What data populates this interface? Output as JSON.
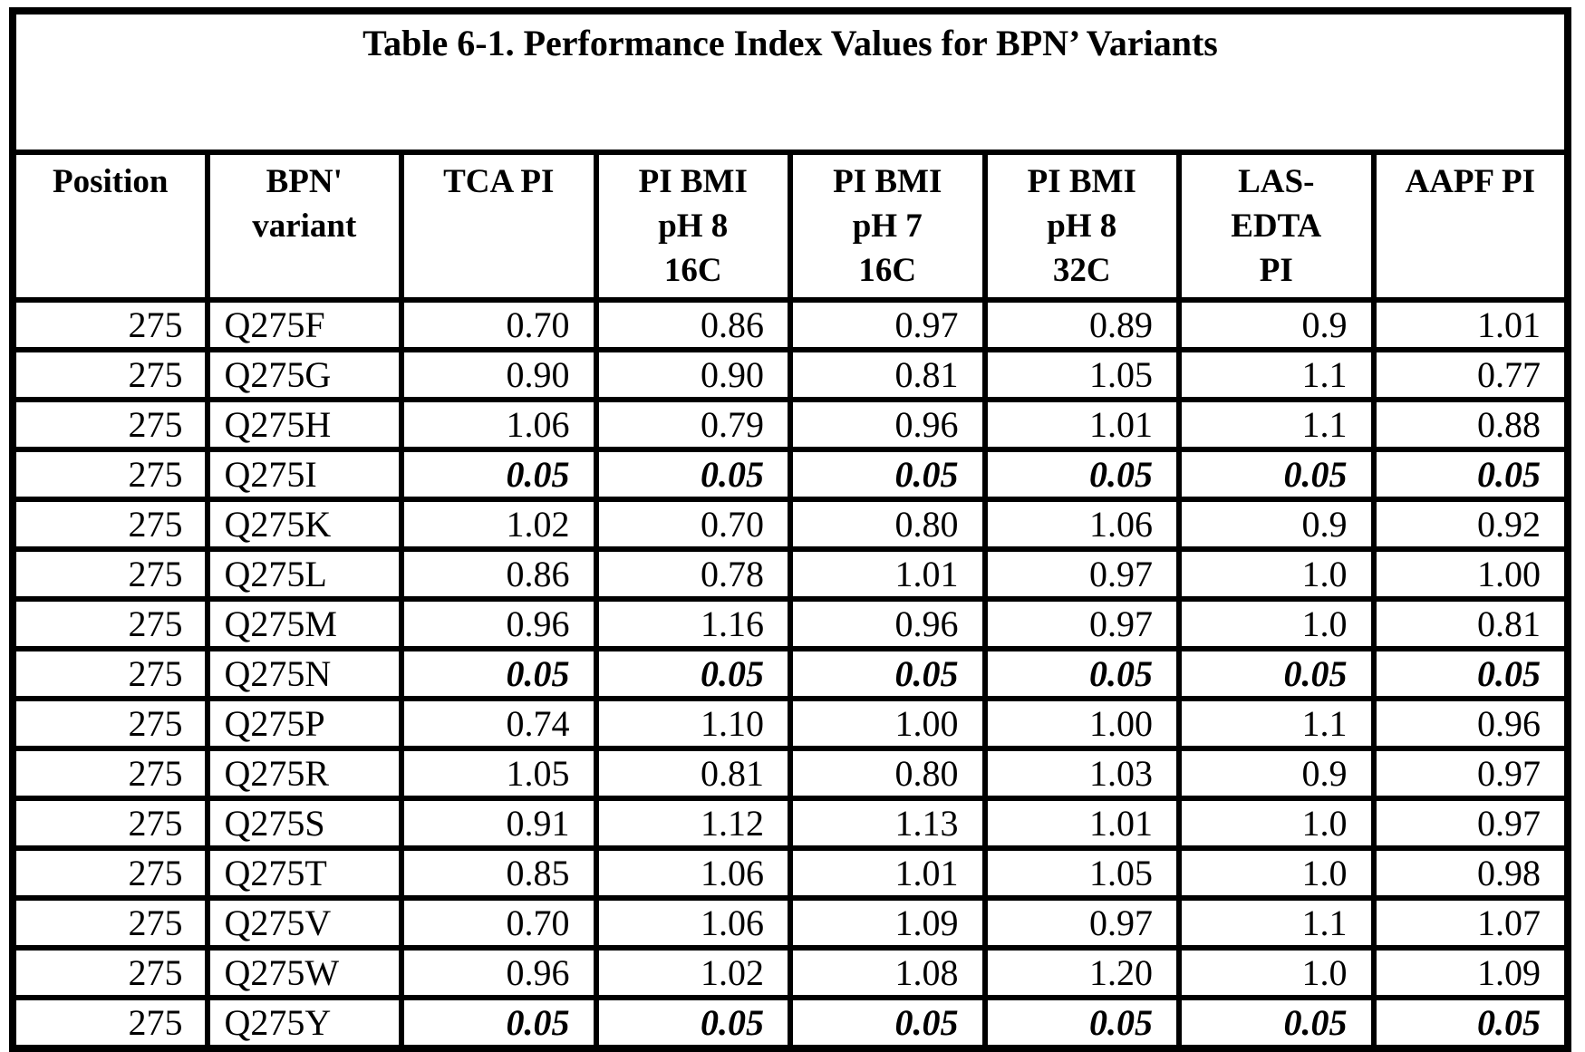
{
  "document": {
    "title": "Table 6-1. Performance Index Values for BPN’ Variants"
  },
  "style": {
    "border_color": "#000000",
    "background_color": "#ffffff",
    "text_color": "#000000"
  },
  "table": {
    "columns": [
      {
        "id": "position",
        "label": "Position",
        "lines": [
          "Position"
        ]
      },
      {
        "id": "bpn-variant",
        "label": "BPN' variant",
        "lines": [
          "BPN'",
          "variant"
        ]
      },
      {
        "id": "tca-pi",
        "label": "TCA PI",
        "lines": [
          "TCA PI"
        ]
      },
      {
        "id": "pi-bmi-ph8-16c",
        "label": "PI BMI pH 8 16C",
        "lines": [
          "PI BMI",
          "pH 8",
          "16C"
        ]
      },
      {
        "id": "pi-bmi-ph7-16c",
        "label": "PI BMI pH 7 16C",
        "lines": [
          "PI BMI",
          "pH 7",
          "16C"
        ]
      },
      {
        "id": "pi-bmi-ph8-32c",
        "label": "PI BMI pH 8 32C",
        "lines": [
          "PI BMI",
          "pH 8",
          "32C"
        ]
      },
      {
        "id": "las-edta-pi",
        "label": "LAS-EDTA PI",
        "lines": [
          "LAS-",
          "EDTA",
          "PI"
        ]
      },
      {
        "id": "aapf-pi",
        "label": "AAPF PI",
        "lines": [
          "AAPF PI"
        ]
      }
    ],
    "rows": [
      {
        "position": "275",
        "variant": "Q275F",
        "values": [
          "0.70",
          "0.86",
          "0.97",
          "0.89",
          "0.9",
          "1.01"
        ],
        "emphasized": false
      },
      {
        "position": "275",
        "variant": "Q275G",
        "values": [
          "0.90",
          "0.90",
          "0.81",
          "1.05",
          "1.1",
          "0.77"
        ],
        "emphasized": false
      },
      {
        "position": "275",
        "variant": "Q275H",
        "values": [
          "1.06",
          "0.79",
          "0.96",
          "1.01",
          "1.1",
          "0.88"
        ],
        "emphasized": false
      },
      {
        "position": "275",
        "variant": "Q275I",
        "values": [
          "0.05",
          "0.05",
          "0.05",
          "0.05",
          "0.05",
          "0.05"
        ],
        "emphasized": true
      },
      {
        "position": "275",
        "variant": "Q275K",
        "values": [
          "1.02",
          "0.70",
          "0.80",
          "1.06",
          "0.9",
          "0.92"
        ],
        "emphasized": false
      },
      {
        "position": "275",
        "variant": "Q275L",
        "values": [
          "0.86",
          "0.78",
          "1.01",
          "0.97",
          "1.0",
          "1.00"
        ],
        "emphasized": false
      },
      {
        "position": "275",
        "variant": "Q275M",
        "values": [
          "0.96",
          "1.16",
          "0.96",
          "0.97",
          "1.0",
          "0.81"
        ],
        "emphasized": false
      },
      {
        "position": "275",
        "variant": "Q275N",
        "values": [
          "0.05",
          "0.05",
          "0.05",
          "0.05",
          "0.05",
          "0.05"
        ],
        "emphasized": true
      },
      {
        "position": "275",
        "variant": "Q275P",
        "values": [
          "0.74",
          "1.10",
          "1.00",
          "1.00",
          "1.1",
          "0.96"
        ],
        "emphasized": false
      },
      {
        "position": "275",
        "variant": "Q275R",
        "values": [
          "1.05",
          "0.81",
          "0.80",
          "1.03",
          "0.9",
          "0.97"
        ],
        "emphasized": false
      },
      {
        "position": "275",
        "variant": "Q275S",
        "values": [
          "0.91",
          "1.12",
          "1.13",
          "1.01",
          "1.0",
          "0.97"
        ],
        "emphasized": false
      },
      {
        "position": "275",
        "variant": "Q275T",
        "values": [
          "0.85",
          "1.06",
          "1.01",
          "1.05",
          "1.0",
          "0.98"
        ],
        "emphasized": false
      },
      {
        "position": "275",
        "variant": "Q275V",
        "values": [
          "0.70",
          "1.06",
          "1.09",
          "0.97",
          "1.1",
          "1.07"
        ],
        "emphasized": false
      },
      {
        "position": "275",
        "variant": "Q275W",
        "values": [
          "0.96",
          "1.02",
          "1.08",
          "1.20",
          "1.0",
          "1.09"
        ],
        "emphasized": false
      },
      {
        "position": "275",
        "variant": "Q275Y",
        "values": [
          "0.05",
          "0.05",
          "0.05",
          "0.05",
          "0.05",
          "0.05"
        ],
        "emphasized": true
      }
    ]
  }
}
